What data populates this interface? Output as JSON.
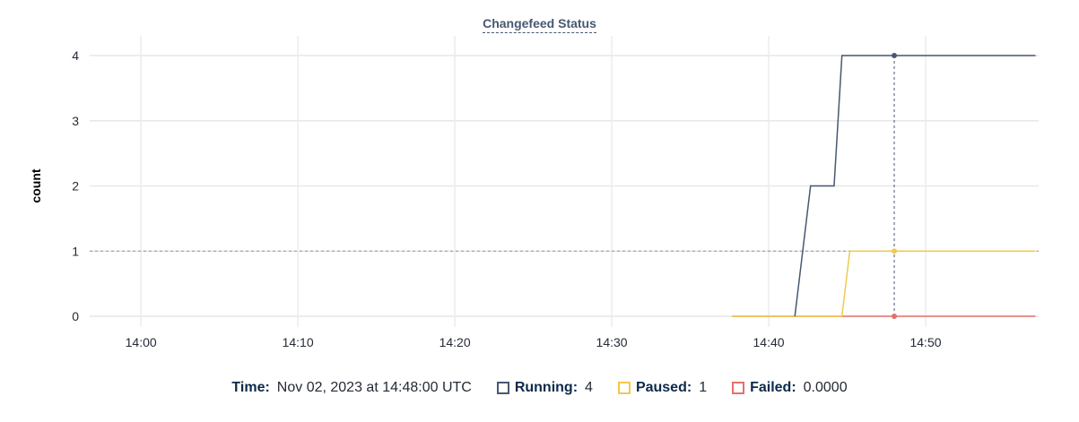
{
  "chart_data": {
    "type": "line",
    "title": "Changefeed Status",
    "ylabel": "count",
    "xlabel": "",
    "xlim": [
      "13:56:44",
      "14:57:12"
    ],
    "ylim": [
      0,
      4
    ],
    "yticks": [
      "0",
      "1",
      "2",
      "3",
      "4"
    ],
    "xticks": [
      "14:00",
      "14:10",
      "14:20",
      "14:30",
      "14:40",
      "14:50"
    ],
    "grid": true,
    "series": [
      {
        "name": "Running",
        "color": "#475872",
        "points": [
          [
            "14:41:40",
            0
          ],
          [
            "14:42:40",
            2
          ],
          [
            "14:44:10",
            2
          ],
          [
            "14:44:40",
            4
          ],
          [
            "14:57:00",
            4
          ]
        ]
      },
      {
        "name": "Paused",
        "color": "#f2c94c",
        "points": [
          [
            "14:37:40",
            0
          ],
          [
            "14:44:40",
            0
          ],
          [
            "14:45:10",
            1
          ],
          [
            "14:57:00",
            1
          ]
        ]
      },
      {
        "name": "Failed",
        "color": "#e5716b",
        "points": [
          [
            "14:37:40",
            0
          ],
          [
            "14:57:00",
            0
          ]
        ]
      }
    ],
    "hover": {
      "time": "14:48:00",
      "reference_y": 1
    }
  },
  "legend": {
    "time_label": "Time:",
    "time_value": "Nov 02, 2023 at 14:48:00 UTC",
    "items": [
      {
        "label": "Running:",
        "value": "4",
        "color": "#475872"
      },
      {
        "label": "Paused:",
        "value": "1",
        "color": "#f2c94c"
      },
      {
        "label": "Failed:",
        "value": "0.0000",
        "color": "#e5716b"
      }
    ]
  }
}
